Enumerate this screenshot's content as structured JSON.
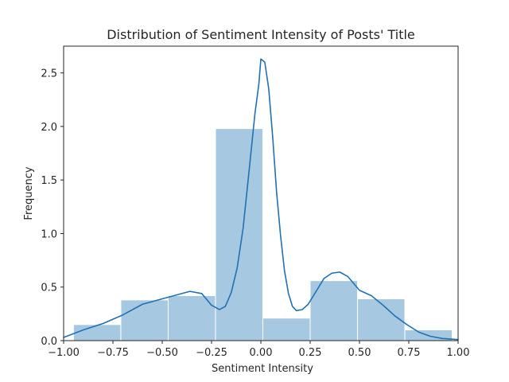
{
  "chart_data": {
    "type": "bar",
    "title": "Distribution of  Sentiment Intensity of Posts' Title",
    "xlabel": "Sentiment Intensity",
    "ylabel": "Frequency",
    "xlim": [
      -1.0,
      1.0
    ],
    "ylim": [
      0,
      2.75
    ],
    "x_ticks": [
      -1.0,
      -0.75,
      -0.5,
      -0.25,
      0.0,
      0.25,
      0.5,
      0.75,
      1.0
    ],
    "x_tick_labels": [
      "−1.00",
      "−0.75",
      "−0.50",
      "−0.25",
      "0.00",
      "0.25",
      "0.50",
      "0.75",
      "1.00"
    ],
    "y_ticks": [
      0.0,
      0.5,
      1.0,
      1.5,
      2.0,
      2.5
    ],
    "y_tick_labels": [
      "0.0",
      "0.5",
      "1.0",
      "1.5",
      "2.0",
      "2.5"
    ],
    "grid": false,
    "bars": [
      {
        "x0": -0.95,
        "x1": -0.71,
        "value": 0.15
      },
      {
        "x0": -0.71,
        "x1": -0.47,
        "value": 0.38
      },
      {
        "x0": -0.47,
        "x1": -0.23,
        "value": 0.42
      },
      {
        "x0": -0.23,
        "x1": 0.01,
        "value": 1.98
      },
      {
        "x0": 0.01,
        "x1": 0.25,
        "value": 0.21
      },
      {
        "x0": 0.25,
        "x1": 0.49,
        "value": 0.56
      },
      {
        "x0": 0.49,
        "x1": 0.73,
        "value": 0.39
      },
      {
        "x0": 0.73,
        "x1": 0.97,
        "value": 0.1
      }
    ],
    "kde": {
      "name": "density",
      "x": [
        -1.0,
        -0.9,
        -0.8,
        -0.7,
        -0.6,
        -0.5,
        -0.42,
        -0.36,
        -0.3,
        -0.25,
        -0.21,
        -0.18,
        -0.15,
        -0.12,
        -0.09,
        -0.06,
        -0.03,
        -0.01,
        0.0,
        0.02,
        0.04,
        0.06,
        0.08,
        0.1,
        0.12,
        0.14,
        0.16,
        0.18,
        0.21,
        0.24,
        0.28,
        0.32,
        0.36,
        0.4,
        0.44,
        0.5,
        0.56,
        0.62,
        0.68,
        0.74,
        0.8,
        0.86,
        0.92,
        1.0
      ],
      "y": [
        0.03,
        0.1,
        0.16,
        0.24,
        0.34,
        0.39,
        0.43,
        0.46,
        0.44,
        0.33,
        0.29,
        0.32,
        0.45,
        0.68,
        1.05,
        1.58,
        2.12,
        2.4,
        2.63,
        2.6,
        2.35,
        1.9,
        1.38,
        0.98,
        0.65,
        0.44,
        0.32,
        0.28,
        0.29,
        0.34,
        0.46,
        0.58,
        0.63,
        0.64,
        0.6,
        0.47,
        0.42,
        0.33,
        0.23,
        0.15,
        0.08,
        0.04,
        0.02,
        0.01
      ]
    },
    "colors": {
      "bar_fill": "#a6c8e0",
      "bar_edge": "#ffffff",
      "line": "#2271b3",
      "axes": "#262626"
    }
  }
}
